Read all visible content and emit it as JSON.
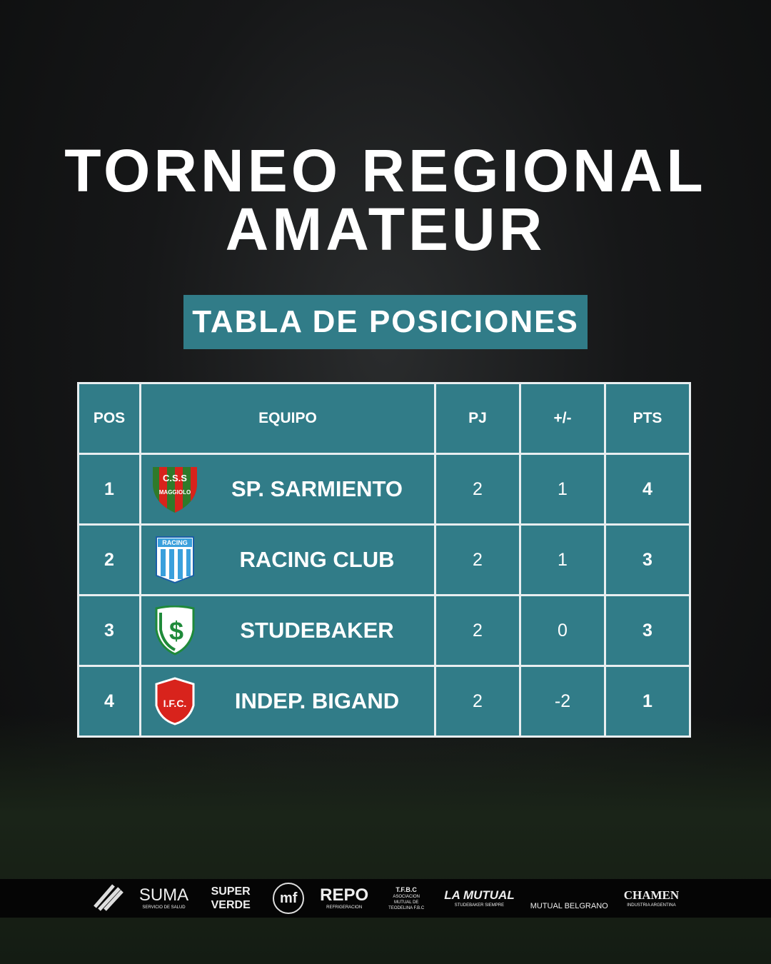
{
  "title_line1": "TORNEO REGIONAL",
  "title_line2": "AMATEUR",
  "subtitle": "TABLA DE POSICIONES",
  "colors": {
    "accent": "#317c88",
    "border": "#e8eef0"
  },
  "table": {
    "headers": [
      "POS",
      "EQUIPO",
      "PJ",
      "+/-",
      "PTS"
    ],
    "rows": [
      {
        "pos": "1",
        "team": "SP. SARMIENTO",
        "crest": "sarmiento-crest",
        "crest_text": "C.S.S MAGGIOLO",
        "pj": "2",
        "diff": "1",
        "pts": "4"
      },
      {
        "pos": "2",
        "team": "RACING CLUB",
        "crest": "racing-crest",
        "crest_text": "RACING",
        "pj": "2",
        "diff": "1",
        "pts": "3"
      },
      {
        "pos": "3",
        "team": "STUDEBAKER",
        "crest": "studebaker-crest",
        "crest_text": "S",
        "pj": "2",
        "diff": "0",
        "pts": "3"
      },
      {
        "pos": "4",
        "team": "INDEP. BIGAND",
        "crest": "bigand-crest",
        "crest_text": "I.F.C.",
        "pj": "2",
        "diff": "-2",
        "pts": "1"
      }
    ]
  },
  "sponsors": [
    {
      "name": "",
      "sub": ""
    },
    {
      "name": "SUMA",
      "sub": "SERVICIO DE SALUD"
    },
    {
      "name": "SUPER VERDE",
      "sub": ""
    },
    {
      "name": "mf",
      "sub": ""
    },
    {
      "name": "REPO",
      "sub": "REFRIGERACION"
    },
    {
      "name": "T.F.B.C",
      "sub": "ASOCIACION MUTUAL DE TEODELINA F.B.C"
    },
    {
      "name": "LA MUTUAL",
      "sub": "STUDEBAKER SIEMPRE"
    },
    {
      "name": "MUTUAL BELGRANO",
      "sub": ""
    },
    {
      "name": "CHAMEN",
      "sub": "INDUSTRIA ARGENTINA"
    }
  ]
}
